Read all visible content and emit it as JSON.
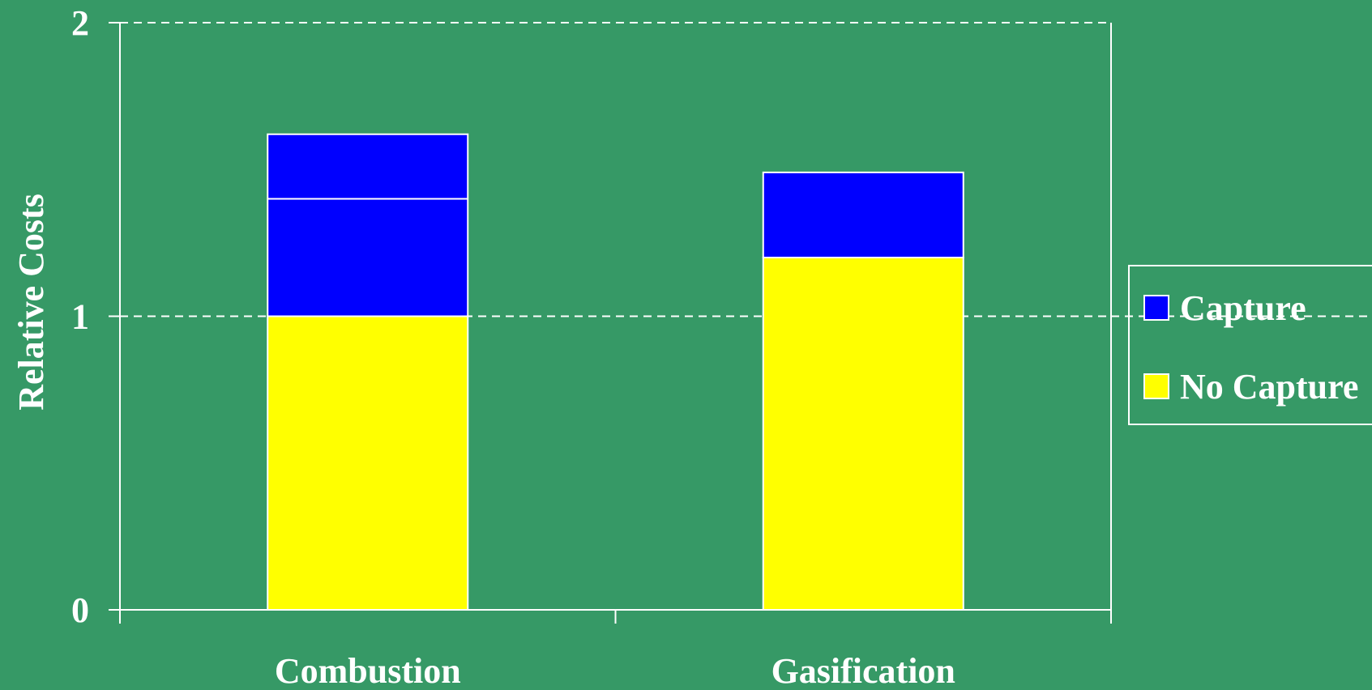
{
  "chart_data": {
    "type": "bar",
    "stacked": true,
    "categories": [
      "Combustion",
      "Gasification"
    ],
    "series": [
      {
        "name": "No Capture",
        "values": [
          1.0,
          1.2
        ],
        "color": "#ffff00"
      },
      {
        "name": "Capture",
        "values": [
          0.62,
          0.29
        ],
        "color": "#0000ff"
      }
    ],
    "combustion_capture_divider": 1.4,
    "title": "",
    "xlabel": "",
    "ylabel": "Relative Costs",
    "ylim": [
      0,
      2
    ],
    "yticks": [
      "0",
      "1",
      "2"
    ],
    "grid": "dashed horizontal at 1 and 2",
    "legend_position": "right",
    "legend_order": [
      "Capture",
      "No Capture"
    ],
    "colors": {
      "background": "#369966",
      "axis": "#ffffff",
      "text": "#ffffff"
    }
  }
}
